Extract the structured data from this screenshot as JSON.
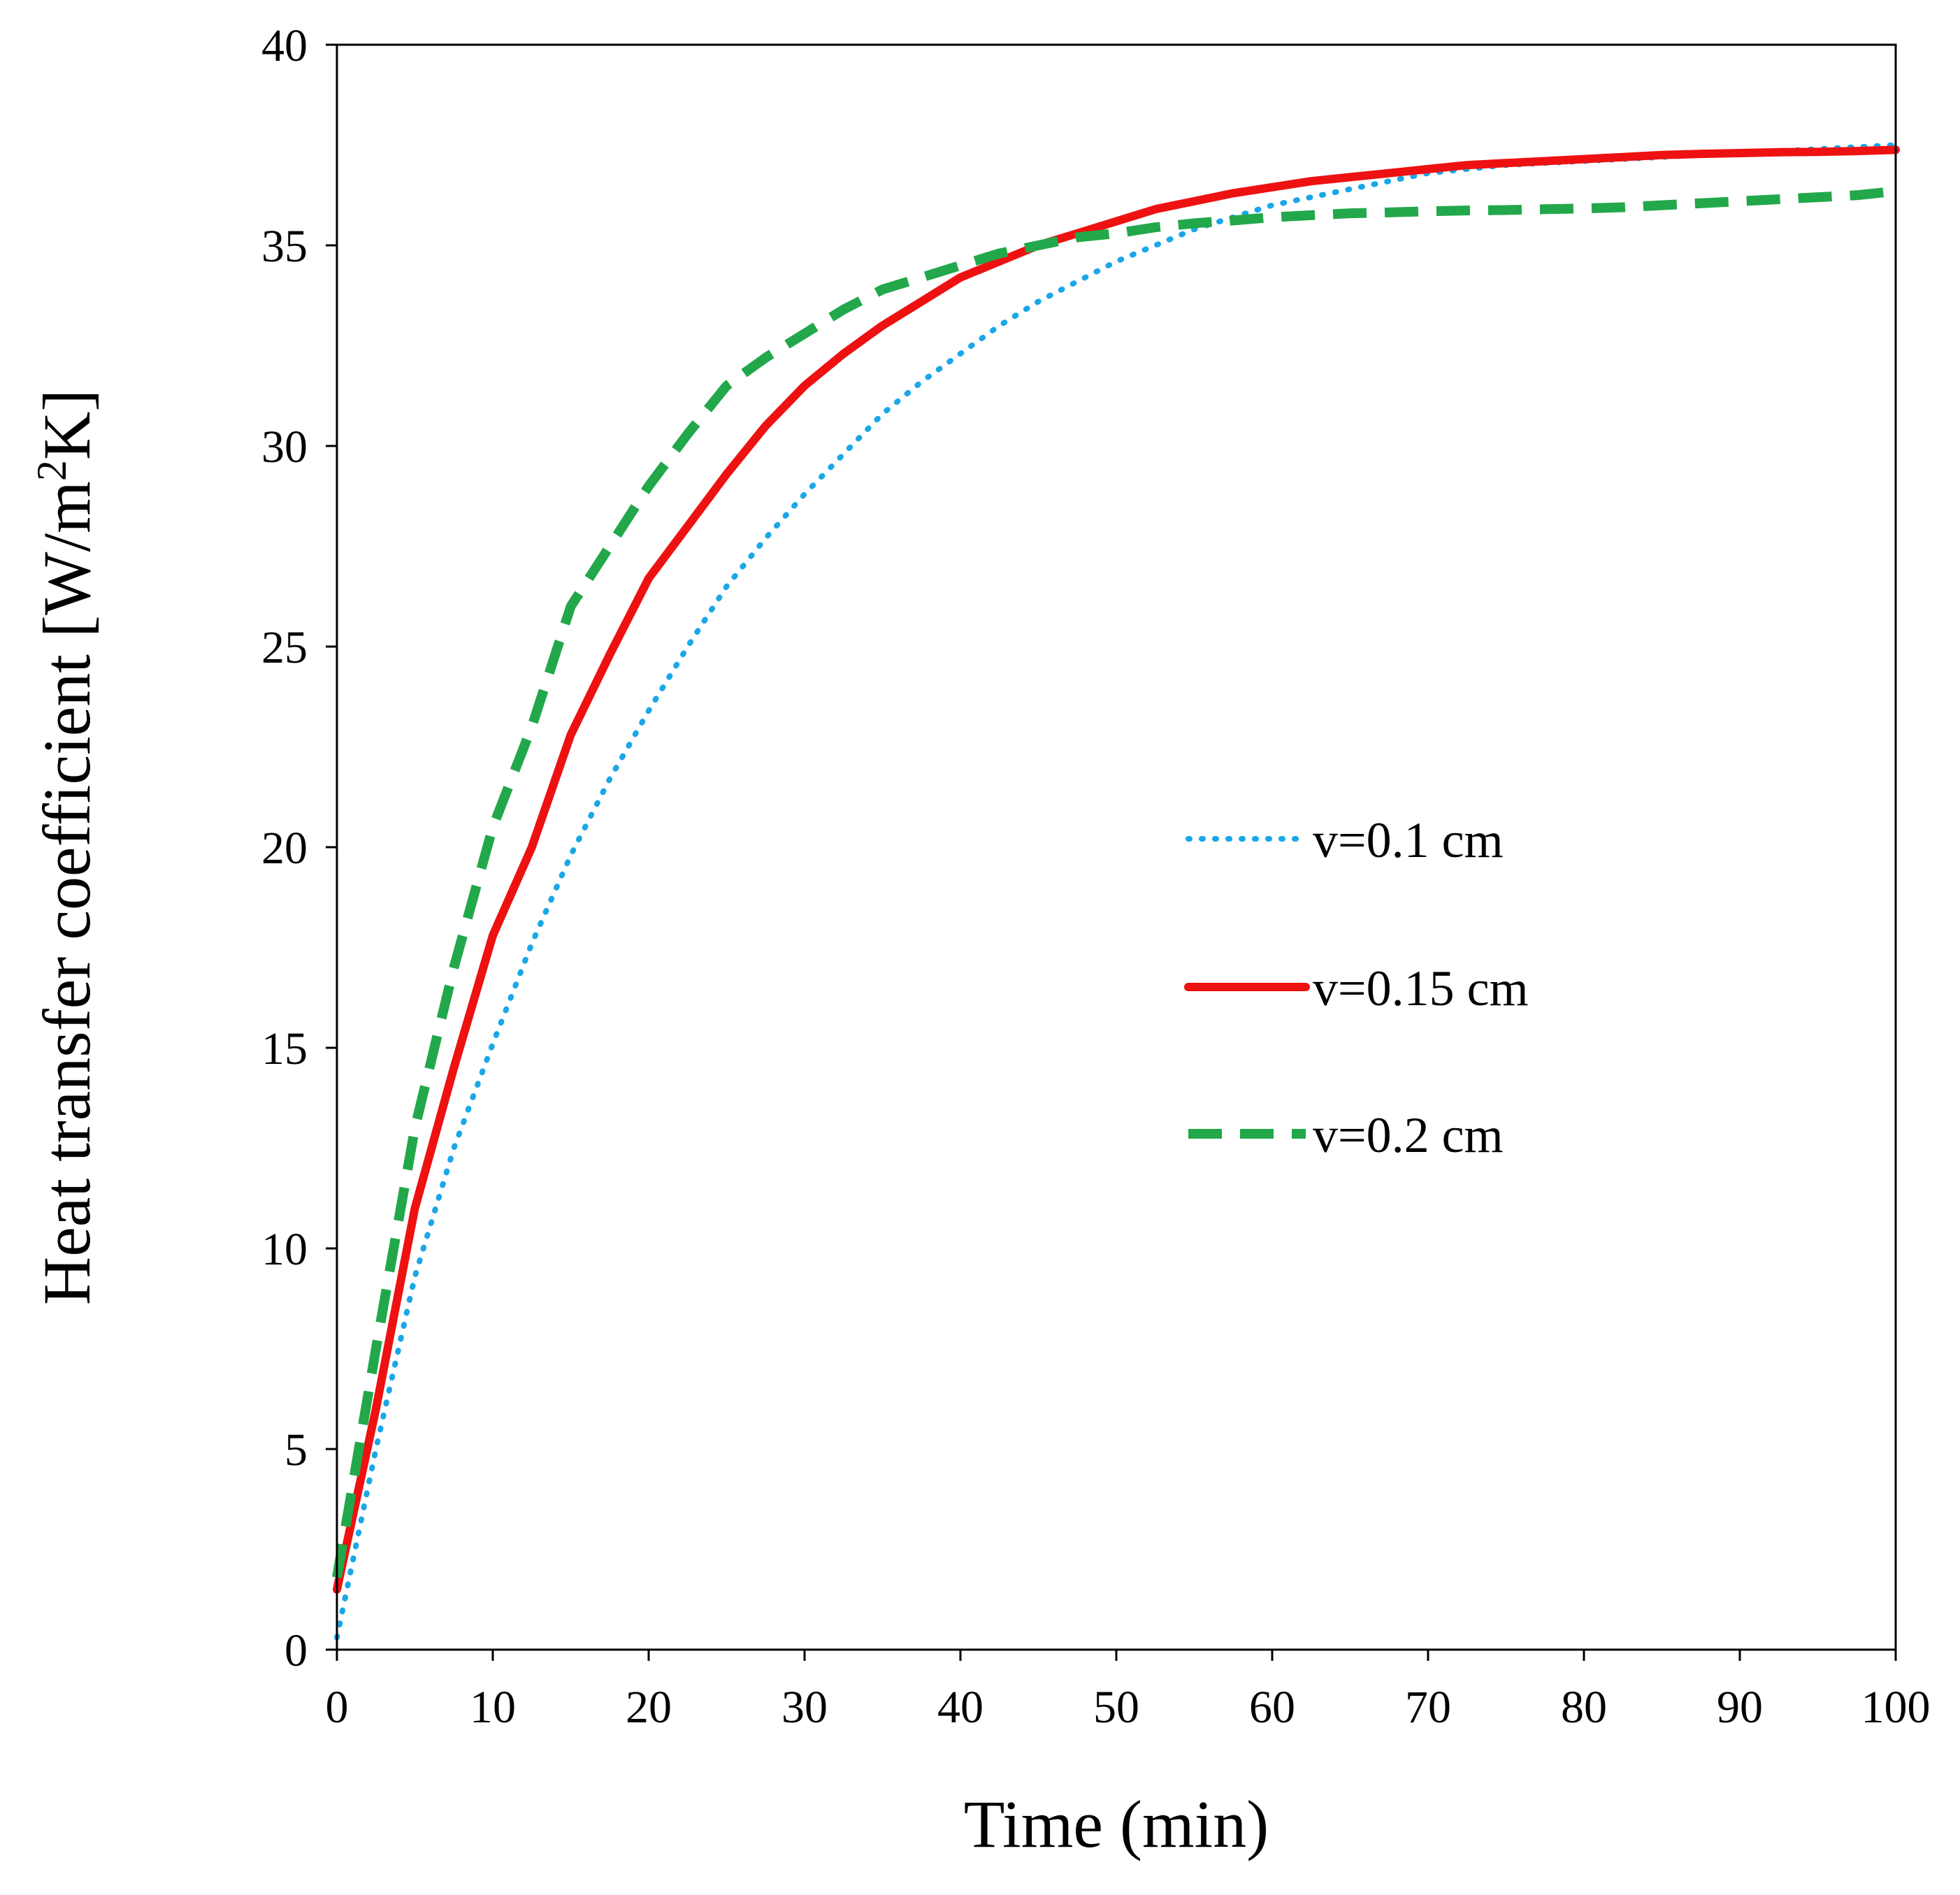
{
  "chart_data": {
    "type": "line",
    "title": "",
    "xlabel": "Time (min)",
    "ylabel": "Heat transfer coefficient [W/m²K]",
    "ylabel_parts": {
      "prefix": "Heat transfer coefficient [W/m",
      "superscript": "2",
      "suffix": "K]"
    },
    "xlim": [
      0,
      100
    ],
    "ylim": [
      0,
      40
    ],
    "xticks": [
      0,
      10,
      20,
      30,
      40,
      50,
      60,
      70,
      80,
      90,
      100
    ],
    "yticks": [
      0,
      5,
      10,
      15,
      20,
      25,
      30,
      35,
      40
    ],
    "grid": false,
    "legend_position": "center-right",
    "series": [
      {
        "name": "v=0.1 cm",
        "color": "#1AA7E8",
        "style": "dotted",
        "x": [
          0,
          2.5,
          5,
          7.5,
          10,
          12.5,
          15,
          17.5,
          20,
          22.5,
          25,
          27.5,
          30,
          32.5,
          35,
          37.5,
          40,
          42.5,
          45,
          47.5,
          50,
          52.5,
          55,
          57.5,
          60,
          62.5,
          65,
          67.5,
          70,
          72.5,
          75,
          77.5,
          80,
          82.5,
          85,
          87.5,
          90,
          92.5,
          95,
          97.5,
          100
        ],
        "y": [
          0.3,
          5.0,
          9.3,
          12.5,
          15.1,
          17.6,
          19.8,
          21.7,
          23.4,
          25.0,
          26.5,
          27.7,
          28.8,
          29.8,
          30.8,
          31.6,
          32.3,
          33.0,
          33.6,
          34.1,
          34.6,
          35.0,
          35.4,
          35.7,
          36.0,
          36.2,
          36.4,
          36.6,
          36.8,
          36.9,
          37.0,
          37.05,
          37.1,
          37.15,
          37.2,
          37.25,
          37.3,
          37.35,
          37.4,
          37.45,
          37.5
        ]
      },
      {
        "name": "v=0.15 cm",
        "color": "#EE1111",
        "style": "solid",
        "x": [
          0,
          2.5,
          5,
          7.5,
          10,
          12.5,
          15,
          17.5,
          20,
          22.5,
          25,
          27.5,
          30,
          32.5,
          35,
          37.5,
          40,
          42.5,
          45,
          47.5,
          50,
          52.5,
          55,
          57.5,
          60,
          62.5,
          65,
          67.5,
          70,
          72.5,
          75,
          77.5,
          80,
          82.5,
          85,
          87.5,
          90,
          92.5,
          95,
          97.5,
          100
        ],
        "y": [
          1.5,
          6.0,
          11.0,
          14.5,
          17.8,
          20.0,
          22.8,
          24.8,
          26.7,
          28.0,
          29.3,
          30.5,
          31.5,
          32.3,
          33.0,
          33.6,
          34.2,
          34.6,
          35.0,
          35.3,
          35.6,
          35.9,
          36.1,
          36.3,
          36.45,
          36.6,
          36.7,
          36.8,
          36.9,
          37.0,
          37.05,
          37.1,
          37.15,
          37.2,
          37.25,
          37.28,
          37.3,
          37.32,
          37.33,
          37.35,
          37.38
        ]
      },
      {
        "name": "v=0.2 cm",
        "color": "#22A84A",
        "style": "dashed",
        "x": [
          0,
          2.5,
          5,
          7.5,
          10,
          12.5,
          15,
          17.5,
          20,
          22.5,
          25,
          27.5,
          30,
          32.5,
          35,
          37.5,
          40,
          42.5,
          45,
          47.5,
          50,
          52.5,
          55,
          57.5,
          60,
          62.5,
          65,
          67.5,
          70,
          72.5,
          75,
          77.5,
          80,
          82.5,
          85,
          87.5,
          90,
          92.5,
          95,
          97.5,
          100
        ],
        "y": [
          1.8,
          7.5,
          13.0,
          17.0,
          20.5,
          23.0,
          26.0,
          27.5,
          29.0,
          30.3,
          31.5,
          32.2,
          32.8,
          33.4,
          33.9,
          34.2,
          34.5,
          34.8,
          35.0,
          35.2,
          35.3,
          35.45,
          35.55,
          35.62,
          35.7,
          35.75,
          35.8,
          35.82,
          35.85,
          35.87,
          35.88,
          35.9,
          35.92,
          35.95,
          36.0,
          36.05,
          36.1,
          36.15,
          36.2,
          36.25,
          36.35
        ]
      }
    ]
  }
}
